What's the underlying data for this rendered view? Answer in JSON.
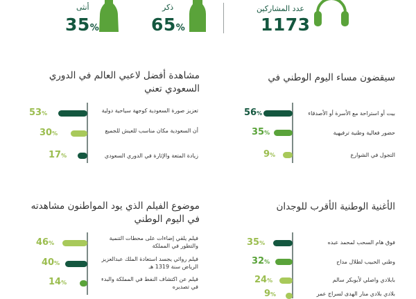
{
  "header": {
    "participants_label": "عدد المشاركين",
    "participants_value": "1173",
    "male_label": "ذكر",
    "male_value": "65",
    "female_label": "أنثى",
    "female_value": "35",
    "percent_sign": "%"
  },
  "sections": {
    "evening": {
      "title": "سيقضون مساء اليوم الوطني في",
      "items": [
        {
          "label": "بيت أو استراحة مع الأسرة أو الأصدقاء",
          "value": "56"
        },
        {
          "label": "حضور فعالية وطنية ترفيهية",
          "value": "35"
        },
        {
          "label": "التجول في الشوارع",
          "value": "9"
        }
      ]
    },
    "league": {
      "title": "مشاهدة أفضل لاعبي العالم في الدوري السعودي تعني",
      "items": [
        {
          "label": "تعزيز صورة السعودية كوجهة سياحية دولية",
          "value": "53"
        },
        {
          "label": "أن السعودية مكان مناسب للعيش للجميع",
          "value": "30"
        },
        {
          "label": "زيادة المتعة والإثارة في الدوري السعودي",
          "value": "17"
        }
      ]
    },
    "songs": {
      "title": "الأغنية الوطنية الأقرب للوجدان",
      "items": [
        {
          "label": "فوق هام السحب لمحمد عبده",
          "value": "35"
        },
        {
          "label": "وطني الحبيب لطلال مداح",
          "value": "32"
        },
        {
          "label": "بابلادي واصلي لأبوبكر سالم",
          "value": "24"
        },
        {
          "label": "بلادي بلادي منار الهدى لسراج عمر",
          "value": "9"
        }
      ]
    },
    "film": {
      "title": "موضوع الفيلم الذي يود المواطنون مشاهدته في اليوم الوطني",
      "items": [
        {
          "label": "فيلم يلقي إضاءات على محطات التنمية والتطور في المملكة",
          "value": "46"
        },
        {
          "label": "فيلم روائي يجسد استعادة الملك عبدالعزيز الرياض سنة 1319 هـ",
          "value": "40"
        },
        {
          "label": "فيلم عن اكتشاف النفط في المملكة والبدء في تصديره",
          "value": "14"
        }
      ]
    }
  },
  "colors": {
    "dark": "#14573f",
    "mid": "#5aa33a",
    "light": "#a8c95a"
  }
}
